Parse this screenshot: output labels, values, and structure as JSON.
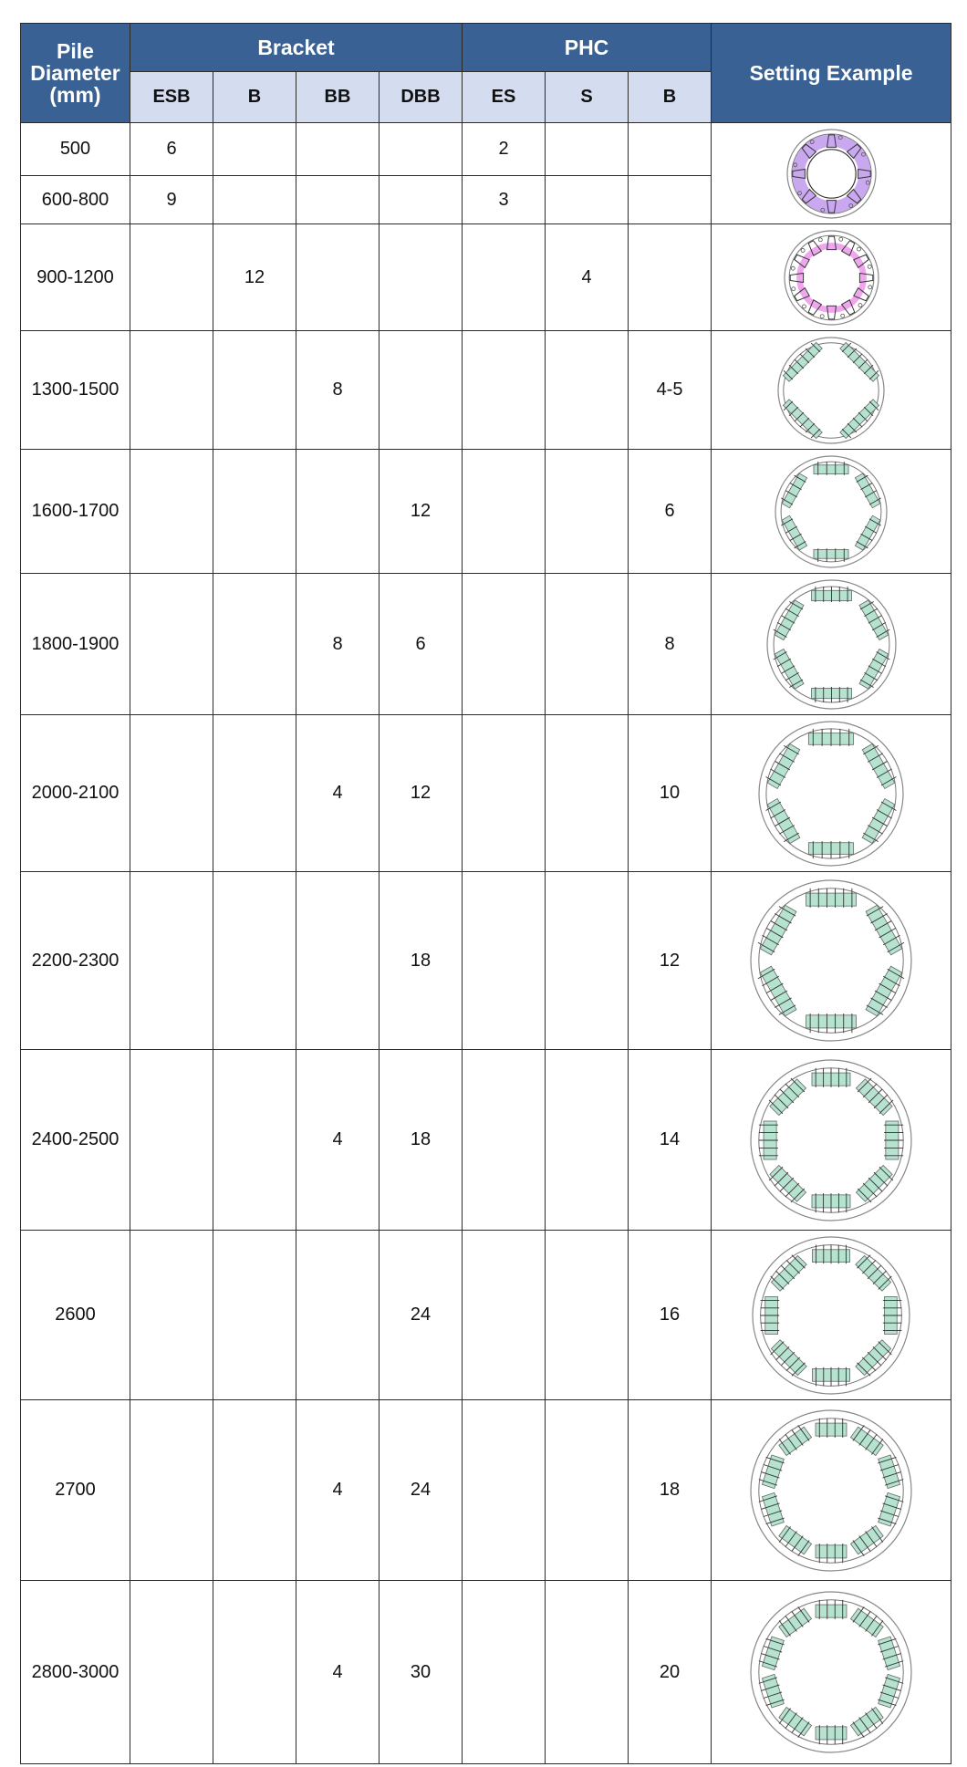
{
  "header": {
    "pile_diameter": "Pile Diameter (mm)",
    "bracket": "Bracket",
    "phc": "PHC",
    "setting_example": "Setting Example",
    "sub": [
      "ESB",
      "B",
      "BB",
      "DBB",
      "ES",
      "S",
      "B"
    ]
  },
  "rows": [
    {
      "diameter": "500",
      "values": [
        "6",
        "",
        "",
        "",
        "2",
        "",
        ""
      ]
    },
    {
      "diameter": "600-800",
      "values": [
        "9",
        "",
        "",
        "",
        "3",
        "",
        ""
      ]
    },
    {
      "diameter": "900-1200",
      "values": [
        "",
        "12",
        "",
        "",
        "",
        "4",
        ""
      ]
    },
    {
      "diameter": "1300-1500",
      "values": [
        "",
        "",
        "8",
        "",
        "",
        "",
        "4-5"
      ]
    },
    {
      "diameter": "1600-1700",
      "values": [
        "",
        "",
        "",
        "12",
        "",
        "",
        "6"
      ]
    },
    {
      "diameter": "1800-1900",
      "values": [
        "",
        "",
        "8",
        "6",
        "",
        "",
        "8"
      ]
    },
    {
      "diameter": "2000-2100",
      "values": [
        "",
        "",
        "4",
        "12",
        "",
        "",
        "10"
      ]
    },
    {
      "diameter": "2200-2300",
      "values": [
        "",
        "",
        "",
        "18",
        "",
        "",
        "12"
      ]
    },
    {
      "diameter": "2400-2500",
      "values": [
        "",
        "",
        "4",
        "18",
        "",
        "",
        "14"
      ]
    },
    {
      "diameter": "2600",
      "values": [
        "",
        "",
        "",
        "24",
        "",
        "",
        "16"
      ]
    },
    {
      "diameter": "2700",
      "values": [
        "",
        "",
        "4",
        "24",
        "",
        "",
        "18"
      ]
    },
    {
      "diameter": "2800-3000",
      "values": [
        "",
        "",
        "4",
        "30",
        "",
        "",
        "20"
      ]
    }
  ],
  "colors": {
    "header_dark": "#3a6193",
    "header_light": "#d3ddef",
    "bracket_green": "#b5e3cf",
    "bracket_purple": "#c9a8ef",
    "bracket_pink": "#f0a6ee"
  }
}
